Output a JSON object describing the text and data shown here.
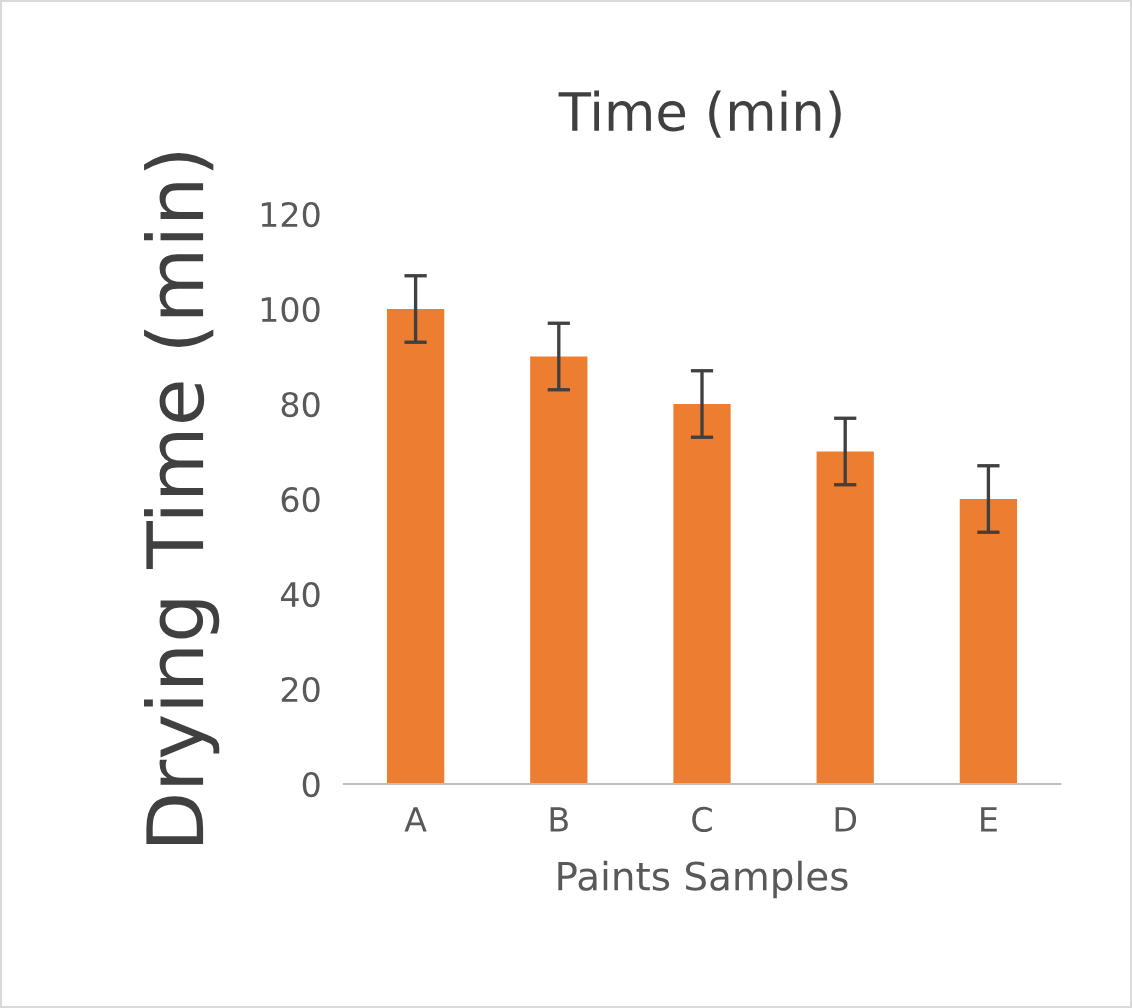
{
  "chart_data": {
    "type": "bar",
    "title": "Time (min)",
    "xlabel": "Paints Samples",
    "ylabel": "Drying Time (min)",
    "categories": [
      "A",
      "B",
      "C",
      "D",
      "E"
    ],
    "values": [
      100,
      90,
      80,
      70,
      60
    ],
    "errors": [
      7,
      7,
      7,
      7,
      7
    ],
    "color": "#ed7d31",
    "ylim": [
      0,
      120
    ],
    "yticks": [
      0,
      20,
      40,
      60,
      80,
      100,
      120
    ],
    "grid": false
  }
}
